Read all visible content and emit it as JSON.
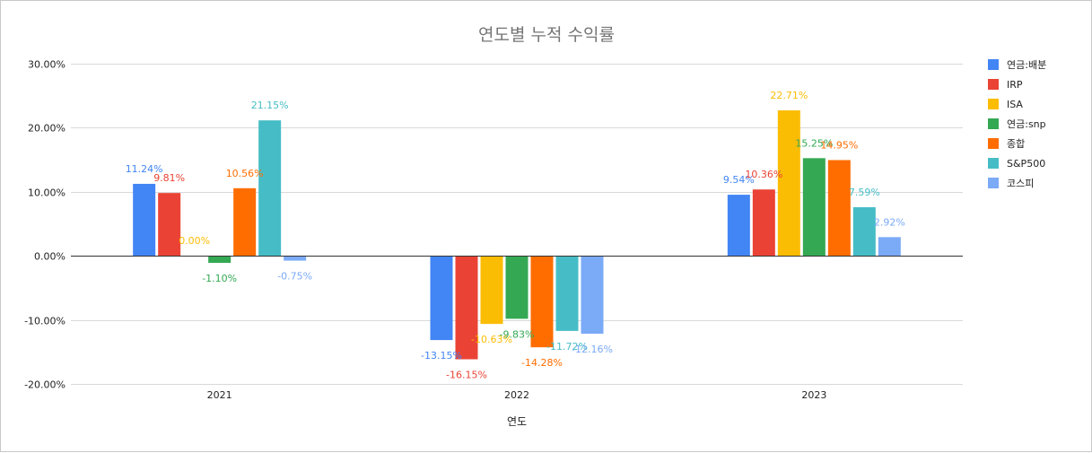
{
  "chart_data": {
    "type": "bar",
    "title": "연도별 누적 수익률",
    "xlabel": "연도",
    "ylabel": "",
    "categories": [
      "2021",
      "2022",
      "2023"
    ],
    "ylim": [
      -20,
      30
    ],
    "yticks": [
      30,
      20,
      10,
      0,
      -10,
      -20
    ],
    "ytick_labels": [
      "30.00%",
      "20.00%",
      "10.00%",
      "0.00%",
      "-10.00%",
      "-20.00%"
    ],
    "grid": true,
    "legend_position": "right",
    "series": [
      {
        "name": "연금:배분",
        "color": "#4285f4",
        "values": [
          11.24,
          -13.15,
          9.54
        ],
        "labels": [
          "11.24%",
          "-13.15%",
          "9.54%"
        ]
      },
      {
        "name": "IRP",
        "color": "#ea4335",
        "values": [
          9.81,
          -16.15,
          10.36
        ],
        "labels": [
          "9.81%",
          "-16.15%",
          "10.36%"
        ]
      },
      {
        "name": "ISA",
        "color": "#fbbc04",
        "values": [
          0.0,
          -10.63,
          22.71
        ],
        "labels": [
          "0.00%",
          "-10.63%",
          "22.71%"
        ]
      },
      {
        "name": "연금:snp",
        "color": "#34a853",
        "values": [
          -1.1,
          -9.83,
          15.25
        ],
        "labels": [
          "-1.10%",
          "-9.83%",
          "15.25%"
        ]
      },
      {
        "name": "종합",
        "color": "#ff6d01",
        "values": [
          10.56,
          -14.28,
          14.95
        ],
        "labels": [
          "10.56%",
          "-14.28%",
          "14.95%"
        ]
      },
      {
        "name": "S&P500",
        "color": "#46bdc6",
        "values": [
          21.15,
          -11.72,
          7.59
        ],
        "labels": [
          "21.15%",
          "-11.72%",
          "7.59%"
        ]
      },
      {
        "name": "코스피",
        "color": "#7baaf7",
        "values": [
          -0.75,
          -12.16,
          2.92
        ],
        "labels": [
          "-0.75%",
          "-12.16%",
          "2.92%"
        ]
      }
    ]
  }
}
